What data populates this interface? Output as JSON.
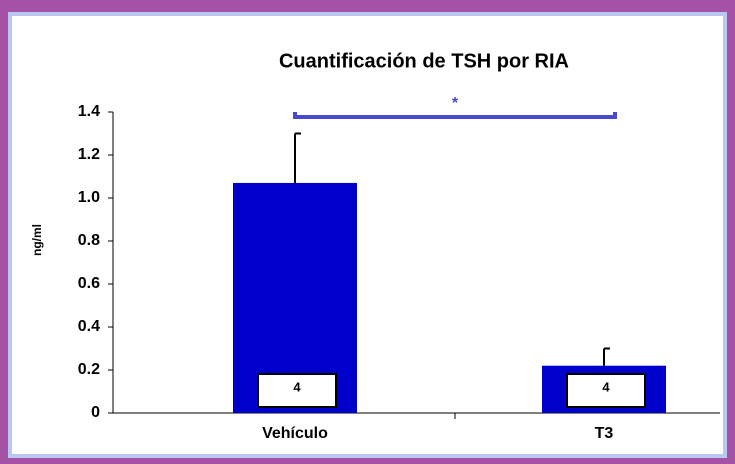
{
  "chart_data": {
    "type": "bar",
    "title": "Cuantificación de TSH por RIA",
    "y_label": "ng/ml",
    "categories": [
      "Vehículo",
      "T3"
    ],
    "values": [
      1.07,
      0.22
    ],
    "errors": [
      0.23,
      0.08
    ],
    "color": "#0000cc",
    "ylim": [
      0,
      1.4
    ],
    "yticks": [
      0,
      0.2,
      0.4,
      0.6,
      0.8,
      {
        "value": 1,
        "label": "1.0"
      },
      1.2,
      1.4
    ],
    "n_labels": [
      "4",
      "4"
    ],
    "significance": "*",
    "significance_color": "#4a4ad0"
  }
}
